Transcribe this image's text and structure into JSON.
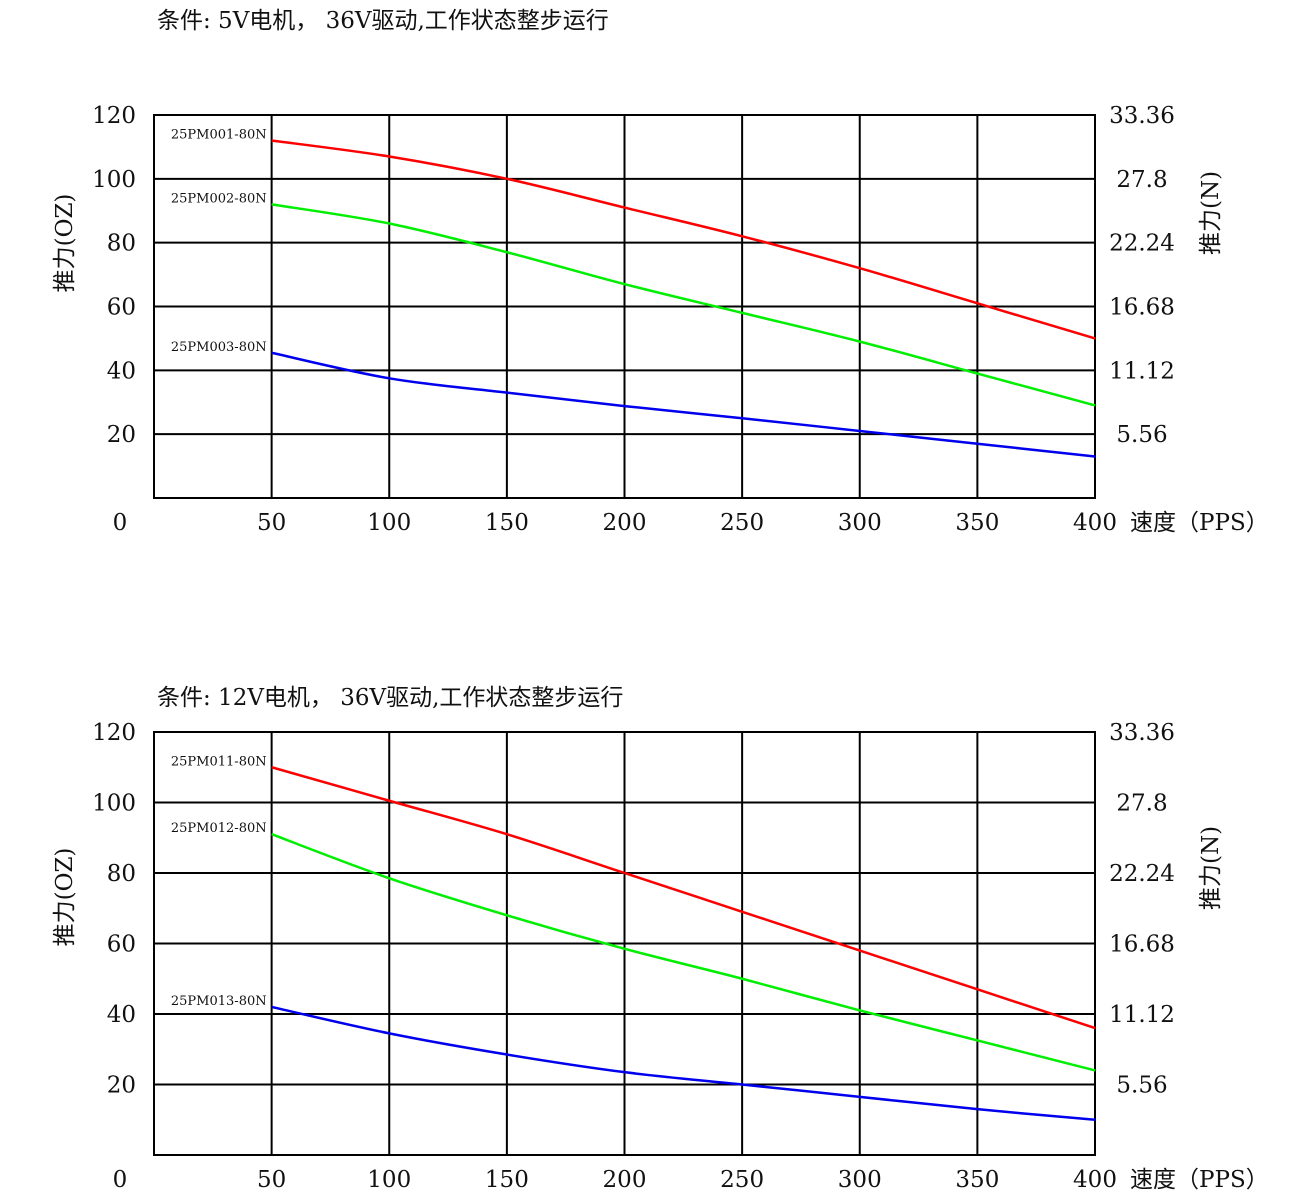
{
  "chart_data": [
    {
      "type": "line",
      "title": "条件: 5V电机，  36V驱动,工作状态整步运行",
      "xlabel": "速度（PPS）",
      "ylabel": "推力(OZ)",
      "y2label": "推力(N)",
      "x_ticks": [
        "50",
        "100",
        "150",
        "200",
        "250",
        "300",
        "350",
        "400"
      ],
      "origin_label": "0",
      "y_ticks": [
        "20",
        "40",
        "60",
        "80",
        "100",
        "120"
      ],
      "y2_ticks": [
        "5.56",
        "11.12",
        "16.68",
        "22.24",
        "27.8",
        "33.36"
      ],
      "xlim": [
        0,
        400
      ],
      "ylim": [
        0,
        120
      ],
      "grid": true,
      "series": [
        {
          "name": "25PM001-80N",
          "color": "#ff0000",
          "x": [
            50,
            100,
            150,
            200,
            250,
            300,
            350,
            400
          ],
          "y": [
            112,
            107,
            100,
            91,
            82,
            72,
            61,
            50
          ]
        },
        {
          "name": "25PM002-80N",
          "color": "#00ee00",
          "x": [
            50,
            100,
            150,
            200,
            250,
            300,
            350,
            400
          ],
          "y": [
            92,
            86,
            77,
            67,
            58,
            49,
            39,
            29
          ]
        },
        {
          "name": "25PM003-80N",
          "color": "#0000ee",
          "x": [
            50,
            100,
            150,
            200,
            250,
            300,
            350,
            400
          ],
          "y": [
            45.5,
            37.5,
            33,
            28.8,
            25,
            21,
            17,
            13
          ]
        }
      ]
    },
    {
      "type": "line",
      "title": "条件: 12V电机，  36V驱动,工作状态整步运行",
      "xlabel": "速度（PPS）",
      "ylabel": "推力(OZ)",
      "y2label": "推力(N)",
      "x_ticks": [
        "50",
        "100",
        "150",
        "200",
        "250",
        "300",
        "350",
        "400"
      ],
      "origin_label": "0",
      "y_ticks": [
        "20",
        "40",
        "60",
        "80",
        "100",
        "120"
      ],
      "y2_ticks": [
        "5.56",
        "11.12",
        "16.68",
        "22.24",
        "27.8",
        "33.36"
      ],
      "xlim": [
        0,
        400
      ],
      "ylim": [
        0,
        120
      ],
      "grid": true,
      "series": [
        {
          "name": "25PM011-80N",
          "color": "#ff0000",
          "x": [
            50,
            100,
            150,
            200,
            250,
            300,
            350,
            400
          ],
          "y": [
            110,
            100.5,
            91,
            80,
            69,
            58,
            47,
            36
          ]
        },
        {
          "name": "25PM012-80N",
          "color": "#00ee00",
          "x": [
            50,
            100,
            150,
            200,
            250,
            300,
            350,
            400
          ],
          "y": [
            91,
            78.5,
            68,
            58.5,
            50,
            41,
            32.5,
            24
          ]
        },
        {
          "name": "25PM013-80N",
          "color": "#0000ee",
          "x": [
            50,
            100,
            150,
            200,
            250,
            300,
            350,
            400
          ],
          "y": [
            42,
            34.5,
            28.5,
            23.5,
            20,
            16.5,
            13,
            10
          ]
        }
      ]
    }
  ]
}
